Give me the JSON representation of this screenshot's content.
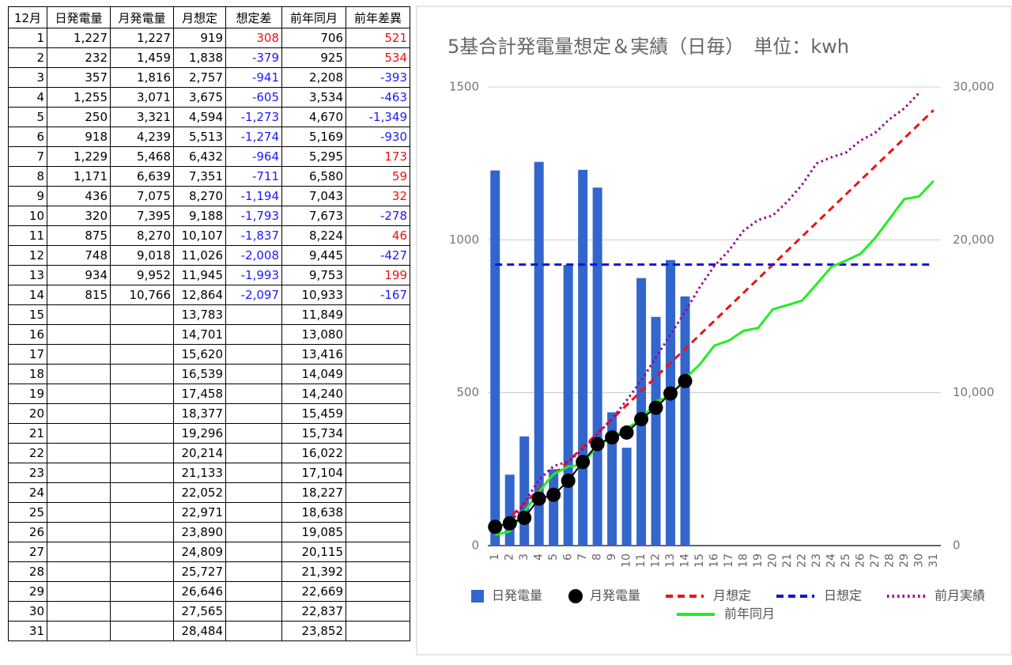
{
  "table": {
    "header": [
      "12月",
      "日発電量",
      "月発電量",
      "月想定",
      "想定差",
      "前年同月",
      "前年差異"
    ],
    "rows": [
      [
        "1",
        "1,227",
        "1,227",
        "919",
        "308",
        "706",
        "521"
      ],
      [
        "2",
        "232",
        "1,459",
        "1,838",
        "-379",
        "925",
        "534"
      ],
      [
        "3",
        "357",
        "1,816",
        "2,757",
        "-941",
        "2,208",
        "-393"
      ],
      [
        "4",
        "1,255",
        "3,071",
        "3,675",
        "-605",
        "3,534",
        "-463"
      ],
      [
        "5",
        "250",
        "3,321",
        "4,594",
        "-1,273",
        "4,670",
        "-1,349"
      ],
      [
        "6",
        "918",
        "4,239",
        "5,513",
        "-1,274",
        "5,169",
        "-930"
      ],
      [
        "7",
        "1,229",
        "5,468",
        "6,432",
        "-964",
        "5,295",
        "173"
      ],
      [
        "8",
        "1,171",
        "6,639",
        "7,351",
        "-711",
        "6,580",
        "59"
      ],
      [
        "9",
        "436",
        "7,075",
        "8,270",
        "-1,194",
        "7,043",
        "32"
      ],
      [
        "10",
        "320",
        "7,395",
        "9,188",
        "-1,793",
        "7,673",
        "-278"
      ],
      [
        "11",
        "875",
        "8,270",
        "10,107",
        "-1,837",
        "8,224",
        "46"
      ],
      [
        "12",
        "748",
        "9,018",
        "11,026",
        "-2,008",
        "9,445",
        "-427"
      ],
      [
        "13",
        "934",
        "9,952",
        "11,945",
        "-1,993",
        "9,753",
        "199"
      ],
      [
        "14",
        "815",
        "10,766",
        "12,864",
        "-2,097",
        "10,933",
        "-167"
      ],
      [
        "15",
        null,
        null,
        "13,783",
        null,
        "11,849",
        null
      ],
      [
        "16",
        null,
        null,
        "14,701",
        null,
        "13,080",
        null
      ],
      [
        "17",
        null,
        null,
        "15,620",
        null,
        "13,416",
        null
      ],
      [
        "18",
        null,
        null,
        "16,539",
        null,
        "14,049",
        null
      ],
      [
        "19",
        null,
        null,
        "17,458",
        null,
        "14,240",
        null
      ],
      [
        "20",
        null,
        null,
        "18,377",
        null,
        "15,459",
        null
      ],
      [
        "21",
        null,
        null,
        "19,296",
        null,
        "15,734",
        null
      ],
      [
        "22",
        null,
        null,
        "20,214",
        null,
        "16,022",
        null
      ],
      [
        "23",
        null,
        null,
        "21,133",
        null,
        "17,104",
        null
      ],
      [
        "24",
        null,
        null,
        "22,052",
        null,
        "18,227",
        null
      ],
      [
        "25",
        null,
        null,
        "22,971",
        null,
        "18,638",
        null
      ],
      [
        "26",
        null,
        null,
        "23,890",
        null,
        "19,085",
        null
      ],
      [
        "27",
        null,
        null,
        "24,809",
        null,
        "20,115",
        null
      ],
      [
        "28",
        null,
        null,
        "25,727",
        null,
        "21,392",
        null
      ],
      [
        "29",
        null,
        null,
        "26,646",
        null,
        "22,669",
        null
      ],
      [
        "30",
        null,
        null,
        "27,565",
        null,
        "22,837",
        null
      ],
      [
        "31",
        null,
        null,
        "28,484",
        null,
        "23,852",
        null
      ]
    ]
  },
  "chart_data": {
    "type": "combo",
    "title": "5基合計発電量想定＆実績（日毎）　単位：kwh",
    "categories": [
      "1",
      "2",
      "3",
      "4",
      "5",
      "6",
      "7",
      "8",
      "9",
      "10",
      "11",
      "12",
      "13",
      "14",
      "15",
      "16",
      "17",
      "18",
      "19",
      "20",
      "21",
      "22",
      "23",
      "24",
      "25",
      "26",
      "27",
      "28",
      "29",
      "30",
      "31"
    ],
    "ylim": [
      0,
      1500
    ],
    "yticks": [
      0,
      500,
      1000,
      1500
    ],
    "y2lim": [
      0,
      30000
    ],
    "y2ticks": [
      0,
      {
        "value": 10000,
        "label": "10,000"
      },
      {
        "value": 20000,
        "label": "20,000"
      },
      {
        "value": 30000,
        "label": "30,000"
      }
    ],
    "grid": true,
    "series": [
      {
        "name": "日発電量",
        "kind": "bar",
        "color": "#3366cc",
        "values": [
          1227,
          232,
          357,
          1255,
          250,
          918,
          1229,
          1171,
          436,
          320,
          875,
          748,
          934,
          815,
          null,
          null,
          null,
          null,
          null,
          null,
          null,
          null,
          null,
          null,
          null,
          null,
          null,
          null,
          null,
          null,
          null
        ]
      },
      {
        "name": "月発電量",
        "kind": "point",
        "color": "#000000",
        "axis": "y2",
        "values": [
          1227,
          1459,
          1816,
          3071,
          3321,
          4239,
          5468,
          6639,
          7075,
          7395,
          8270,
          9018,
          9952,
          10766,
          null,
          null,
          null,
          null,
          null,
          null,
          null,
          null,
          null,
          null,
          null,
          null,
          null,
          null,
          null,
          null,
          null
        ]
      },
      {
        "name": "月想定",
        "kind": "line",
        "dash": "dashed",
        "color": "#ee1111",
        "axis": "y2",
        "values": [
          919,
          1838,
          2757,
          3675,
          4594,
          5513,
          6432,
          7351,
          8270,
          9188,
          10107,
          11026,
          11945,
          12864,
          13783,
          14701,
          15620,
          16539,
          17458,
          18377,
          19296,
          20214,
          21133,
          22052,
          22971,
          23890,
          24809,
          25727,
          26646,
          27565,
          28484
        ]
      },
      {
        "name": "日想定",
        "kind": "line",
        "dash": "dashed",
        "color": "#1111dd",
        "values": [
          919,
          919,
          919,
          919,
          919,
          919,
          919,
          919,
          919,
          919,
          919,
          919,
          919,
          919,
          919,
          919,
          919,
          919,
          919,
          919,
          919,
          919,
          919,
          919,
          919,
          919,
          919,
          919,
          919,
          919,
          919
        ]
      },
      {
        "name": "前月実績",
        "kind": "line",
        "dash": "dotted",
        "color": "#990099",
        "axis": "y2",
        "values": [
          800,
          1400,
          2800,
          4300,
          5200,
          5500,
          6300,
          7300,
          8300,
          9500,
          10800,
          12300,
          13800,
          15300,
          16900,
          18300,
          19300,
          20600,
          21300,
          21600,
          22500,
          23600,
          25000,
          25400,
          25700,
          26500,
          27000,
          27900,
          28600,
          29600,
          null
        ]
      },
      {
        "name": "前年同月",
        "kind": "line",
        "color": "#22ee22",
        "axis": "y2",
        "values": [
          706,
          925,
          2208,
          3534,
          4670,
          5169,
          5295,
          6580,
          7043,
          7673,
          8224,
          9445,
          9753,
          10933,
          11849,
          13080,
          13416,
          14049,
          14240,
          15459,
          15734,
          16022,
          17104,
          18227,
          18638,
          19085,
          20115,
          21392,
          22669,
          22837,
          23852
        ]
      }
    ]
  }
}
